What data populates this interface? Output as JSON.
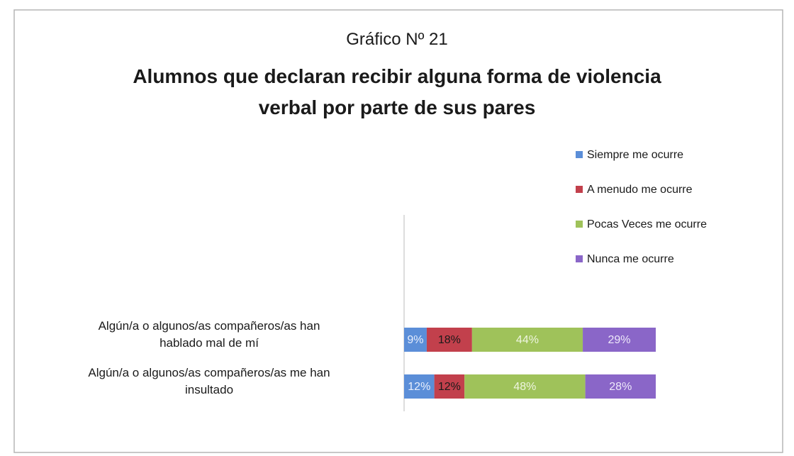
{
  "chart_data": {
    "type": "stacked-bar-horizontal",
    "subtitle": "Gráfico Nº 21",
    "title": "Alumnos que declaran recibir  alguna forma de violencia\nverbal por parte de sus pares",
    "categories": [
      "Algún/a o algunos/as compañeros/as han\nhablado mal de mí",
      "Algún/a o algunos/as compañeros/as me han\ninsultado"
    ],
    "xlim": [
      0,
      100
    ],
    "series": [
      {
        "name": "Siempre me ocurre",
        "color": "#5b8ed8",
        "label_color": "#e8eefc",
        "values": [
          9,
          12
        ],
        "value_labels": [
          "9%",
          "12%"
        ]
      },
      {
        "name": "A menudo me ocurre",
        "color": "#c2404c",
        "label_color": "#1a1a1a",
        "values": [
          18,
          12
        ],
        "value_labels": [
          "18%",
          "12%"
        ]
      },
      {
        "name": "Pocas Veces me ocurre",
        "color": "#9fc25a",
        "label_color": "#eef5e0",
        "values": [
          44,
          48
        ],
        "value_labels": [
          "44%",
          "48%"
        ]
      },
      {
        "name": "Nunca me ocurre",
        "color": "#8a66c8",
        "label_color": "#eee8fa",
        "values": [
          29,
          28
        ],
        "value_labels": [
          "29%",
          "28%"
        ]
      }
    ]
  }
}
